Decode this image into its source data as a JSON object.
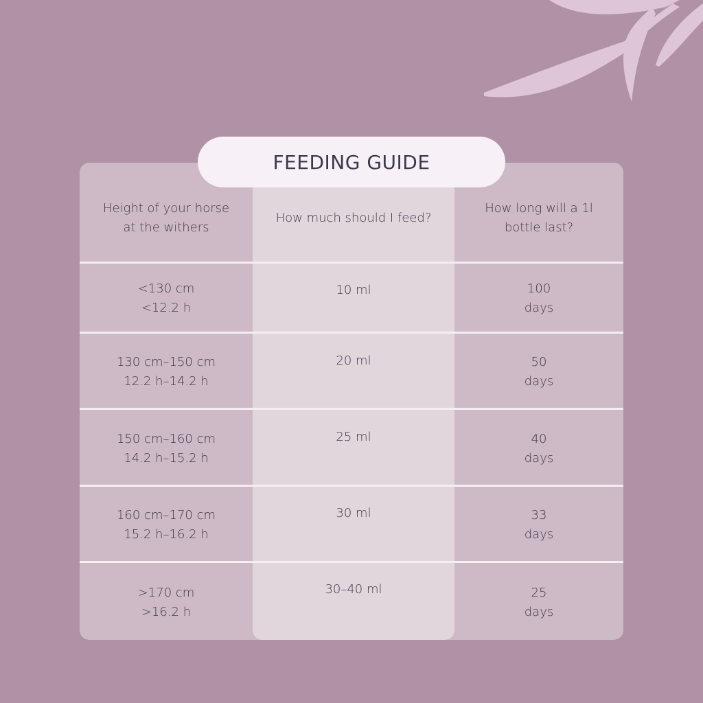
{
  "title": "FEEDING GUIDE",
  "headers": [
    "Height of your horse\nat the withers",
    "How much should I feed?",
    "How long will a 1l\nbottle last?"
  ],
  "rows": [
    {
      "height": "<130 cm\n<12.2 h",
      "amount": "10 ml",
      "duration": "100\ndays"
    },
    {
      "height": "130 cm–150 cm\n12.2 h–14.2 h",
      "amount": "20 ml",
      "duration": "50\ndays"
    },
    {
      "height": "150 cm–160 cm\n14.2 h–15.2 h",
      "amount": "25 ml",
      "duration": "40\ndays"
    },
    {
      "height": "160 cm–170 cm\n15.2 h–16.2 h",
      "amount": "30 ml",
      "duration": "33\ndays"
    },
    {
      "height": ">170 cm\n>16.2 h",
      "amount": "30–40 ml",
      "duration": "25\ndays"
    }
  ],
  "colors": {
    "background": "#b091a6",
    "panel": "#cdbac6",
    "highlight_column": "#e2d6dd",
    "title_pill": "#f7f0f7",
    "text": "#3d3a4b",
    "leaf": "#dfc6d6"
  },
  "icons": {
    "decoration": "leaf-branch-icon"
  }
}
